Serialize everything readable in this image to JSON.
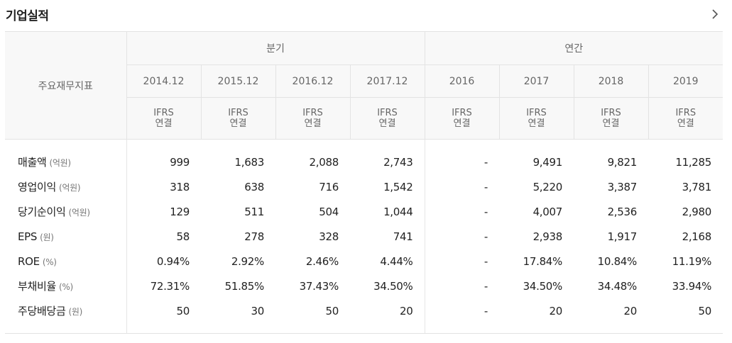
{
  "header": {
    "title": "기업실적"
  },
  "table": {
    "row_header": "주요재무지표",
    "groups": [
      "분기",
      "연간"
    ],
    "periods": [
      "2014.12",
      "2015.12",
      "2016.12",
      "2017.12",
      "2016",
      "2017",
      "2018",
      "2019"
    ],
    "standard_line1": "IFRS",
    "standard_line2": "연결",
    "rows": [
      {
        "label": "매출액",
        "unit": "(억원)",
        "values": [
          "999",
          "1,683",
          "2,088",
          "2,743",
          "-",
          "9,491",
          "9,821",
          "11,285"
        ]
      },
      {
        "label": "영업이익",
        "unit": "(억원)",
        "values": [
          "318",
          "638",
          "716",
          "1,542",
          "-",
          "5,220",
          "3,387",
          "3,781"
        ]
      },
      {
        "label": "당기순이익",
        "unit": "(억원)",
        "values": [
          "129",
          "511",
          "504",
          "1,044",
          "-",
          "4,007",
          "2,536",
          "2,980"
        ]
      },
      {
        "label": "EPS",
        "unit": "(원)",
        "values": [
          "58",
          "278",
          "328",
          "741",
          "-",
          "2,938",
          "1,917",
          "2,168"
        ]
      },
      {
        "label": "ROE",
        "unit": "(%)",
        "values": [
          "0.94%",
          "2.92%",
          "2.46%",
          "4.44%",
          "-",
          "17.84%",
          "10.84%",
          "11.19%"
        ]
      },
      {
        "label": "부채비율",
        "unit": "(%)",
        "values": [
          "72.31%",
          "51.85%",
          "37.43%",
          "34.50%",
          "-",
          "34.50%",
          "34.48%",
          "33.94%"
        ]
      },
      {
        "label": "주당배당금",
        "unit": "(원)",
        "values": [
          "50",
          "30",
          "50",
          "20",
          "-",
          "20",
          "20",
          "50"
        ]
      }
    ]
  },
  "icons": {
    "more": "chevron-right-icon"
  }
}
